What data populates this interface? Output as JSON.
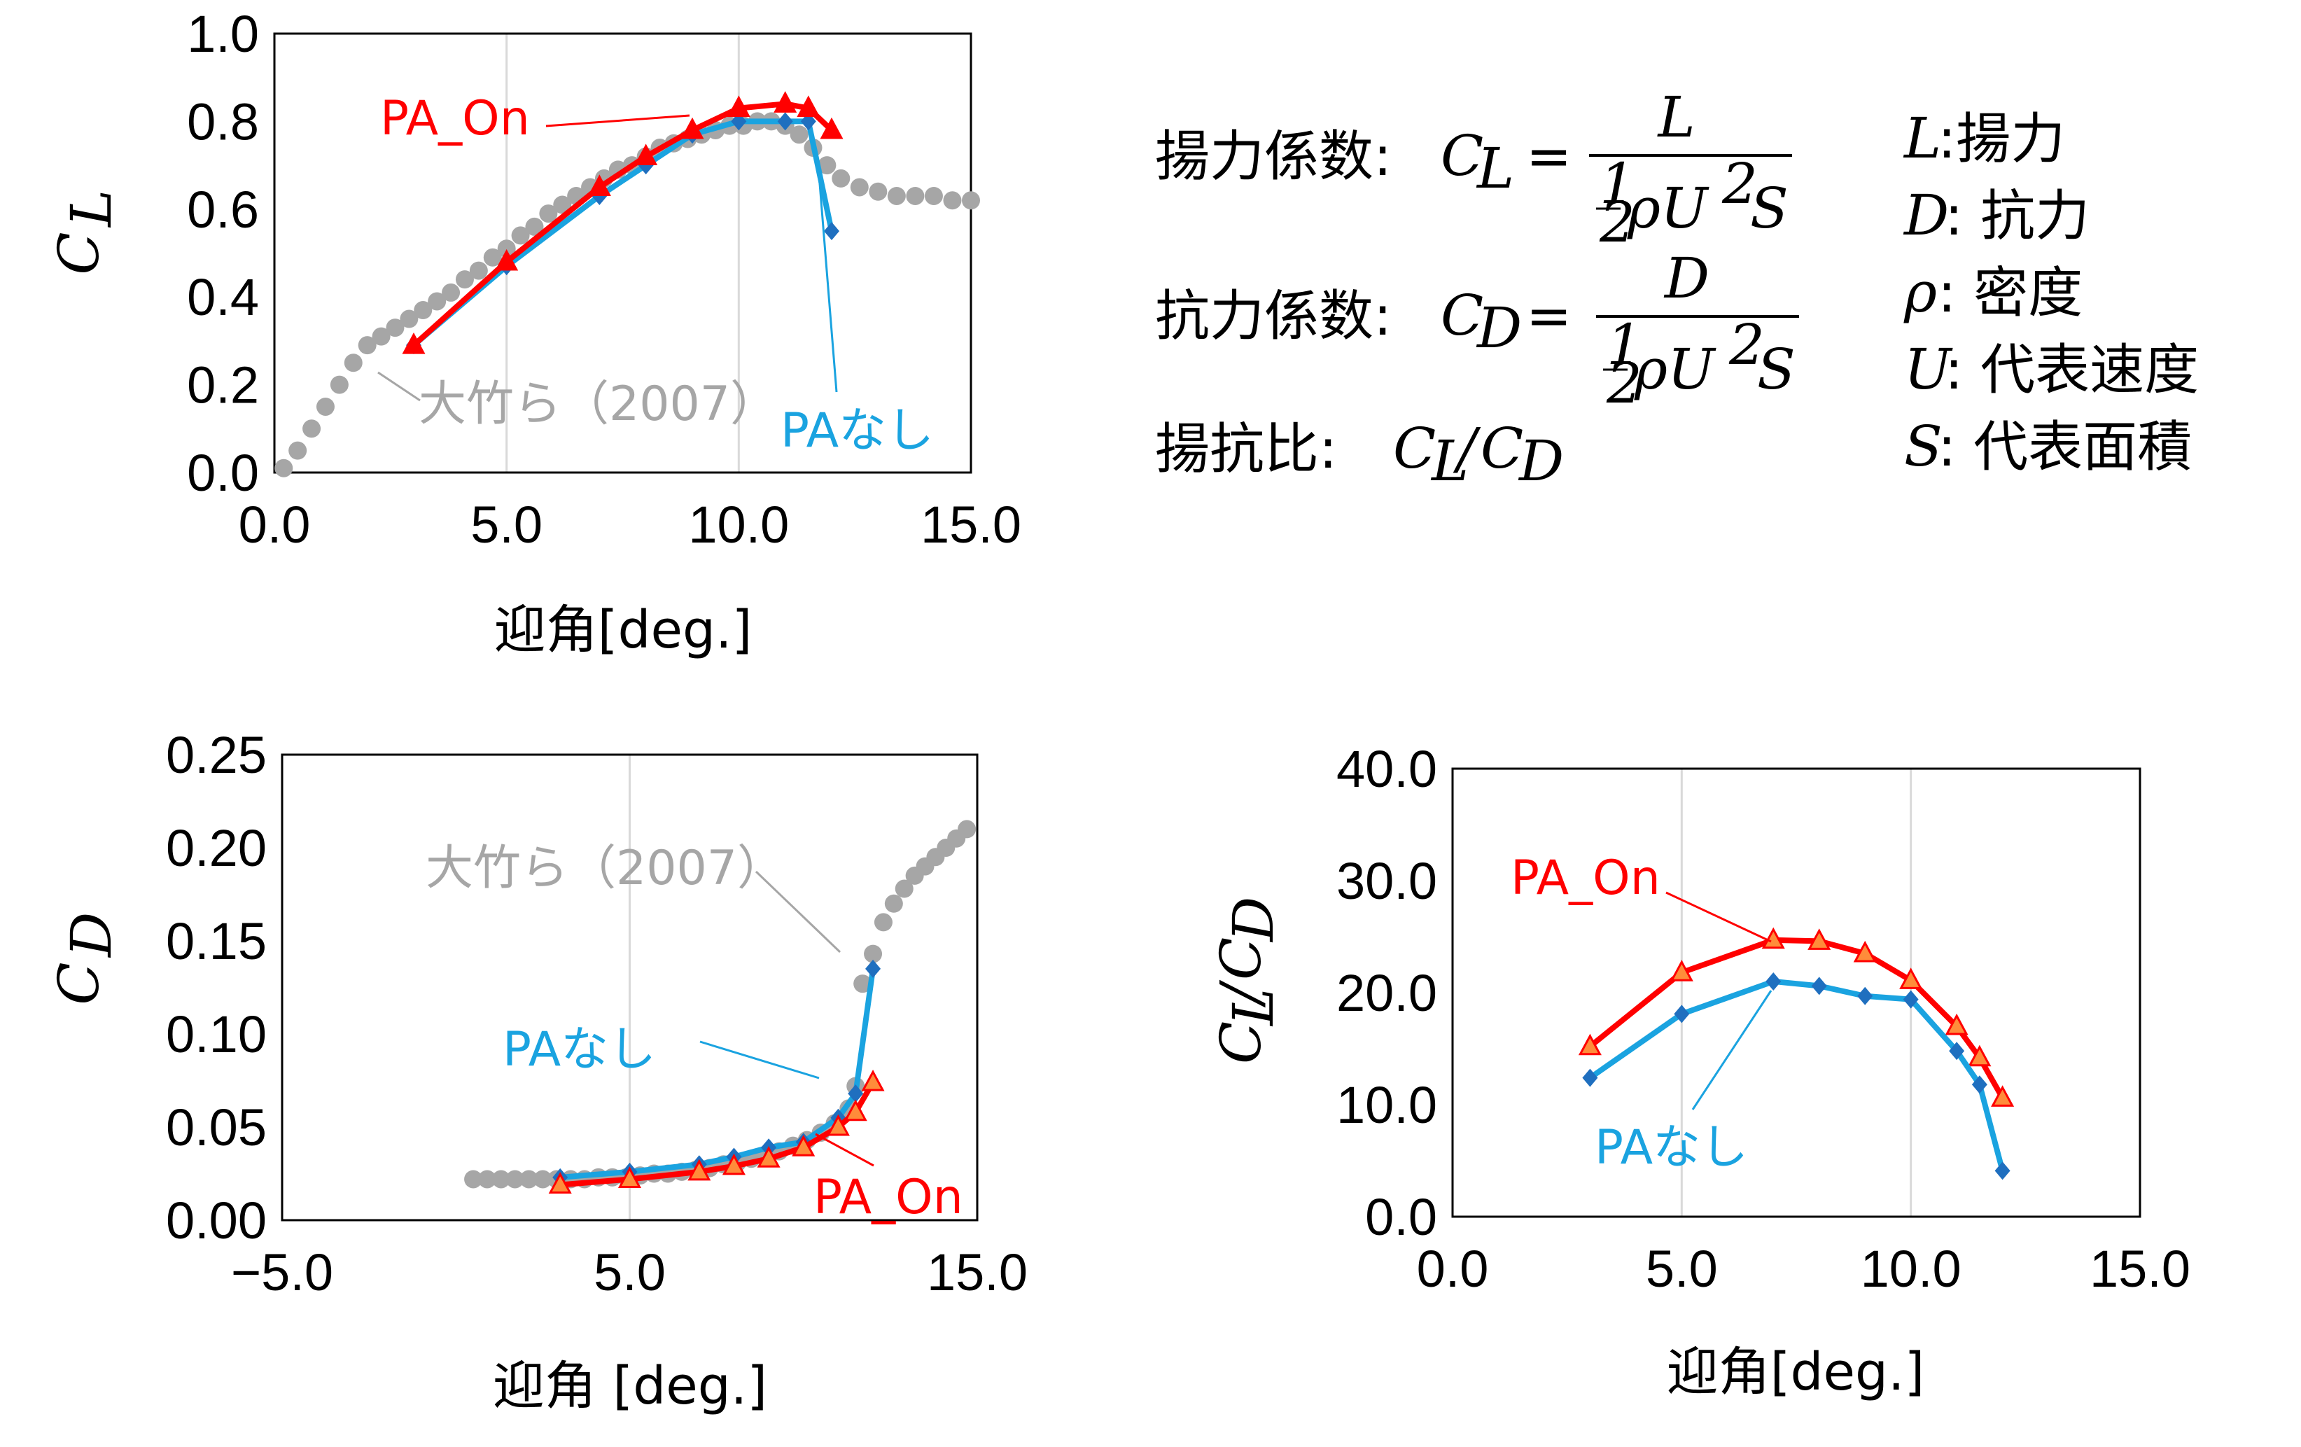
{
  "colors": {
    "pa_on": "#ff0000",
    "pa_nashi": "#1aa3e0",
    "pa_nashi_marker": "#1f6fbf",
    "otake": "#a6a6a6",
    "pa_on_marker_fill": "#ff8c3a",
    "grid": "#d9d9d9"
  },
  "chart_data": [
    {
      "type": "line",
      "id": "cl",
      "xlabel": "迎角[deg.]",
      "ylabel": "C_L",
      "xlim": [
        0,
        15
      ],
      "ylim": [
        0,
        1.0
      ],
      "xticks": [
        "0.0",
        "5.0",
        "10.0",
        "15.0"
      ],
      "yticks": [
        "0.0",
        "0.2",
        "0.4",
        "0.6",
        "0.8",
        "1.0"
      ],
      "grid": "vertical",
      "series": [
        {
          "name": "大竹ら(2007)",
          "color": "#a6a6a6",
          "style": "dots",
          "x": [
            0.2,
            0.5,
            0.8,
            1.1,
            1.4,
            1.7,
            2.0,
            2.3,
            2.6,
            2.9,
            3.2,
            3.5,
            3.8,
            4.1,
            4.4,
            4.7,
            5.0,
            5.3,
            5.6,
            5.9,
            6.2,
            6.5,
            6.8,
            7.1,
            7.4,
            7.7,
            8.0,
            8.3,
            8.6,
            8.9,
            9.2,
            9.5,
            9.8,
            10.1,
            10.4,
            10.7,
            11.0,
            11.3,
            11.6,
            11.9,
            12.2,
            12.6,
            13.0,
            13.4,
            13.8,
            14.2,
            14.6,
            15.0
          ],
          "y": [
            0.01,
            0.05,
            0.1,
            0.15,
            0.2,
            0.25,
            0.29,
            0.31,
            0.33,
            0.35,
            0.37,
            0.39,
            0.41,
            0.44,
            0.46,
            0.49,
            0.51,
            0.54,
            0.56,
            0.59,
            0.61,
            0.63,
            0.65,
            0.67,
            0.69,
            0.7,
            0.72,
            0.74,
            0.75,
            0.76,
            0.77,
            0.78,
            0.79,
            0.79,
            0.8,
            0.8,
            0.79,
            0.77,
            0.74,
            0.7,
            0.67,
            0.65,
            0.64,
            0.63,
            0.63,
            0.63,
            0.62,
            0.62
          ]
        },
        {
          "name": "PAなし",
          "color": "#1aa3e0",
          "marker": "diamond",
          "x": [
            3.0,
            5.0,
            7.0,
            8.0,
            9.0,
            10.0,
            11.0,
            11.5,
            12.0
          ],
          "y": [
            0.29,
            0.47,
            0.63,
            0.7,
            0.77,
            0.8,
            0.8,
            0.8,
            0.55
          ]
        },
        {
          "name": "PA_On",
          "color": "#ff0000",
          "marker": "triangle",
          "x": [
            3.0,
            5.0,
            7.0,
            8.0,
            9.0,
            10.0,
            11.0,
            11.5,
            12.0
          ],
          "y": [
            0.29,
            0.48,
            0.65,
            0.72,
            0.78,
            0.83,
            0.84,
            0.83,
            0.78
          ]
        }
      ],
      "annotations": [
        {
          "text": "PA_On",
          "series": "PA_On"
        },
        {
          "text": "大竹ら（2007）",
          "series": "大竹ら(2007)"
        },
        {
          "text": "PAなし",
          "series": "PAなし"
        }
      ]
    },
    {
      "type": "line",
      "id": "cd",
      "xlabel": "迎角 [deg.]",
      "ylabel": "C_D",
      "xlim": [
        -5,
        15
      ],
      "ylim": [
        0,
        0.25
      ],
      "xticks": [
        "−5.0",
        "5.0",
        "15.0"
      ],
      "yticks": [
        "0.00",
        "0.05",
        "0.10",
        "0.15",
        "0.20",
        "0.25"
      ],
      "grid": "vertical",
      "series": [
        {
          "name": "大竹ら(2007)",
          "color": "#a6a6a6",
          "style": "dots",
          "x": [
            0.5,
            0.9,
            1.3,
            1.7,
            2.1,
            2.5,
            2.9,
            3.3,
            3.7,
            4.1,
            4.5,
            4.9,
            5.3,
            5.7,
            6.1,
            6.5,
            6.9,
            7.3,
            7.7,
            8.1,
            8.5,
            8.9,
            9.3,
            9.7,
            10.1,
            10.5,
            10.9,
            11.3,
            11.5,
            11.7,
            12.0,
            12.3,
            12.6,
            12.9,
            13.2,
            13.5,
            13.8,
            14.1,
            14.4,
            14.7
          ],
          "y": [
            0.022,
            0.022,
            0.022,
            0.022,
            0.022,
            0.022,
            0.022,
            0.022,
            0.022,
            0.023,
            0.023,
            0.023,
            0.024,
            0.025,
            0.025,
            0.026,
            0.027,
            0.028,
            0.03,
            0.031,
            0.033,
            0.035,
            0.037,
            0.04,
            0.043,
            0.047,
            0.052,
            0.06,
            0.072,
            0.127,
            0.143,
            0.16,
            0.17,
            0.178,
            0.185,
            0.19,
            0.195,
            0.2,
            0.205,
            0.21
          ]
        },
        {
          "name": "PAなし",
          "color": "#1aa3e0",
          "marker": "diamond",
          "x": [
            3.0,
            5.0,
            7.0,
            8.0,
            9.0,
            10.0,
            11.0,
            11.5,
            12.0
          ],
          "y": [
            0.023,
            0.026,
            0.03,
            0.034,
            0.039,
            0.042,
            0.055,
            0.068,
            0.135
          ]
        },
        {
          "name": "PA_On",
          "color": "#ff0000",
          "marker": "triangle",
          "x": [
            3.0,
            5.0,
            7.0,
            8.0,
            9.0,
            10.0,
            11.0,
            11.5,
            12.0
          ],
          "y": [
            0.019,
            0.022,
            0.026,
            0.029,
            0.033,
            0.039,
            0.05,
            0.058,
            0.074
          ]
        }
      ],
      "annotations": [
        {
          "text": "大竹ら（2007）",
          "series": "大竹ら(2007)"
        },
        {
          "text": "PAなし",
          "series": "PAなし"
        },
        {
          "text": "PA_On",
          "series": "PA_On"
        }
      ]
    },
    {
      "type": "line",
      "id": "ld",
      "xlabel": "迎角[deg.]",
      "ylabel": "C_L/C_D",
      "xlim": [
        0,
        15
      ],
      "ylim": [
        0,
        40
      ],
      "xticks": [
        "0.0",
        "5.0",
        "10.0",
        "15.0"
      ],
      "yticks": [
        "0.0",
        "10.0",
        "20.0",
        "30.0",
        "40.0"
      ],
      "grid": "vertical",
      "series": [
        {
          "name": "PA_On",
          "color": "#ff0000",
          "marker": "triangle",
          "x": [
            3.0,
            5.0,
            7.0,
            8.0,
            9.0,
            10.0,
            11.0,
            11.5,
            12.0
          ],
          "y": [
            15.2,
            21.8,
            24.7,
            24.6,
            23.5,
            21.1,
            17.0,
            14.2,
            10.6
          ]
        },
        {
          "name": "PAなし",
          "color": "#1aa3e0",
          "marker": "diamond",
          "x": [
            3.0,
            5.0,
            7.0,
            8.0,
            9.0,
            10.0,
            11.0,
            11.5,
            12.0
          ],
          "y": [
            12.4,
            18.1,
            21.0,
            20.6,
            19.7,
            19.4,
            14.8,
            11.8,
            4.1
          ]
        }
      ],
      "annotations": [
        {
          "text": "PA_On",
          "series": "PA_On"
        },
        {
          "text": "PAなし",
          "series": "PAなし"
        }
      ]
    }
  ],
  "formulas": {
    "cl_label": "揚力係数:",
    "cl_lhs": "C",
    "cl_lhs_sub": "L",
    "equals": "=",
    "cl_num": "L",
    "half_num": "1",
    "half_den": "2",
    "den_body": "ρU",
    "den_sup": "2",
    "den_tail": "S",
    "cd_label": "抗力係数:",
    "cd_lhs": "C",
    "cd_lhs_sub": "D",
    "cd_num": "D",
    "ld_label": "揚抗比:",
    "ld_c1": "C",
    "ld_sub1": "L",
    "ld_slash": "/",
    "ld_c2": "C",
    "ld_sub2": "D"
  },
  "legend_defs": [
    {
      "sym": "L",
      "text": ":揚力"
    },
    {
      "sym": "D",
      "text": ": 抗力"
    },
    {
      "sym": "ρ",
      "text": ": 密度"
    },
    {
      "sym": "U",
      "text": ": 代表速度"
    },
    {
      "sym": "S",
      "text": ": 代表面積"
    }
  ]
}
